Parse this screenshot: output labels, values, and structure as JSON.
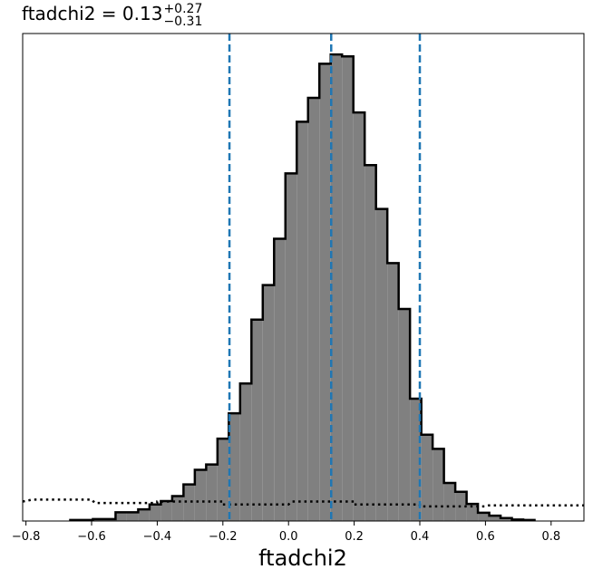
{
  "chart_data": {
    "type": "histogram",
    "title": {
      "prefix": "ftadchi2 = ",
      "value": "0.13",
      "upper": "+0.27",
      "lower": "−0.31"
    },
    "xlabel": "ftadchi2",
    "ylabel": "",
    "xlim": [
      -0.81,
      0.9
    ],
    "ylim": [
      0,
      1.0
    ],
    "xticks": [
      -0.8,
      -0.6,
      -0.4,
      -0.2,
      0.0,
      0.2,
      0.4,
      0.6,
      0.8
    ],
    "xtick_labels": [
      "−0.8",
      "−0.6",
      "−0.4",
      "−0.2",
      "0.0",
      "0.2",
      "0.4",
      "0.6",
      "0.8"
    ],
    "yticks_visible": false,
    "grid": false,
    "bins": {
      "start": -0.665,
      "width": 0.0345,
      "heights": [
        0.002,
        0.002,
        0.004,
        0.004,
        0.018,
        0.018,
        0.024,
        0.034,
        0.041,
        0.051,
        0.075,
        0.105,
        0.116,
        0.169,
        0.221,
        0.282,
        0.413,
        0.484,
        0.579,
        0.713,
        0.819,
        0.868,
        0.938,
        0.957,
        0.953,
        0.838,
        0.73,
        0.64,
        0.529,
        0.435,
        0.251,
        0.177,
        0.148,
        0.078,
        0.06,
        0.035,
        0.017,
        0.011,
        0.006,
        0.003,
        0.002
      ],
      "fill": "#808080",
      "edge": "#000000"
    },
    "vlines": [
      {
        "x": -0.18,
        "color": "#1f77b4",
        "style": "dashed"
      },
      {
        "x": 0.13,
        "color": "#1f77b4",
        "style": "dashed"
      },
      {
        "x": 0.4,
        "color": "#1f77b4",
        "style": "dashed"
      }
    ],
    "prior": {
      "color": "#000000",
      "style": "dotted",
      "x": [
        -0.81,
        -0.78,
        -0.6,
        -0.59,
        -0.4,
        -0.4,
        -0.2,
        -0.2,
        0.0,
        0.01,
        0.2,
        0.2,
        0.4,
        0.4,
        0.6,
        0.61,
        0.9
      ],
      "y": [
        0.04,
        0.044,
        0.044,
        0.037,
        0.037,
        0.04,
        0.04,
        0.034,
        0.034,
        0.04,
        0.04,
        0.034,
        0.034,
        0.03,
        0.03,
        0.032,
        0.032
      ]
    }
  }
}
